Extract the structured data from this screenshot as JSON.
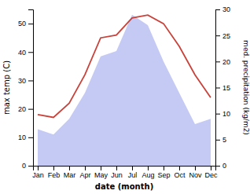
{
  "chart_data": {
    "type": "line",
    "xlabel": "date (month)",
    "ylabel": "max temp (C)",
    "y2label": "med. precipitation (kg/m2)",
    "categories": [
      "Jan",
      "Feb",
      "Mar",
      "Apr",
      "May",
      "Jun",
      "Jul",
      "Aug",
      "Sep",
      "Oct",
      "Nov",
      "Dec"
    ],
    "series": [
      {
        "type": "area",
        "axis": "y2",
        "color": "#c5caf5",
        "values": [
          7,
          6,
          9,
          14,
          21,
          22,
          29,
          27,
          20,
          14,
          8,
          9
        ]
      },
      {
        "type": "line",
        "color": "#c9423a",
        "values": [
          18,
          17,
          22,
          32,
          45,
          46,
          52,
          53,
          50,
          42,
          32,
          24
        ]
      }
    ],
    "ylim": [
      0,
      55
    ],
    "yticks": [
      0,
      10,
      20,
      30,
      40,
      50
    ],
    "y2lim": [
      0,
      30
    ],
    "y2ticks": [
      0,
      5,
      10,
      15,
      20,
      25,
      30
    ]
  }
}
